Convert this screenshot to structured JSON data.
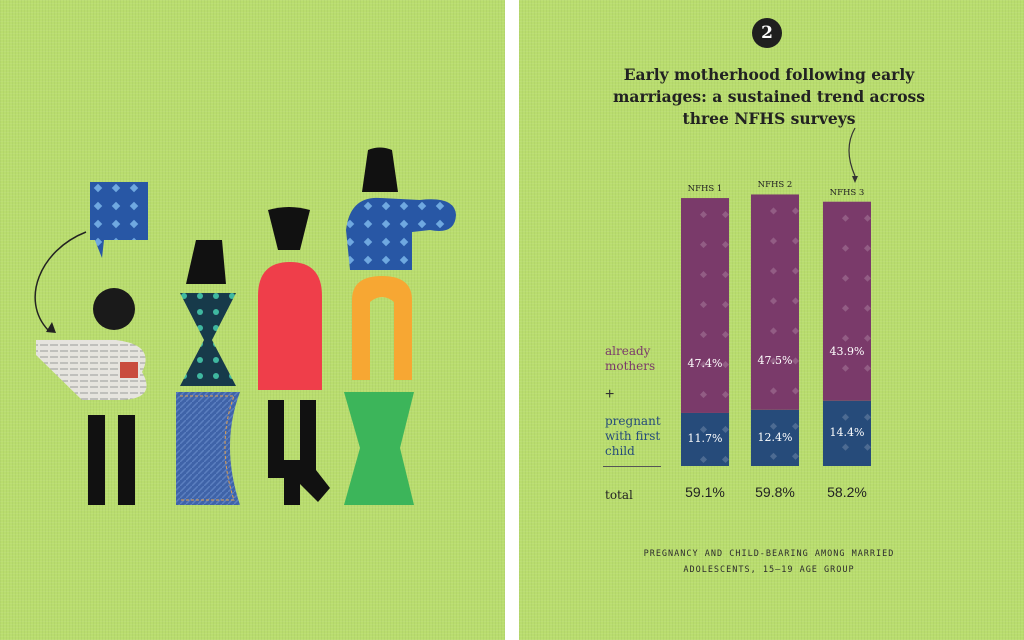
{
  "badge": "2",
  "title_lines": [
    "Early motherhood following early",
    "marriages: a sustained trend across",
    "three NFHS surveys"
  ],
  "legend": {
    "mothers_lines": [
      "already",
      "mothers"
    ],
    "plus": "+",
    "pregnant_lines": [
      "pregnant",
      "with first",
      "child"
    ],
    "total": "total"
  },
  "footnote_lines": [
    "PREGNANCY AND CHILD-BEARING AMONG MARRIED",
    "ADOLESCENTS, 15–19 AGE GROUP"
  ],
  "colors": {
    "background": "#b9dd6e",
    "already_mothers": "#7a3a6a",
    "pregnant": "#264b7a"
  },
  "chart_data": {
    "type": "bar",
    "stacked": true,
    "categories": [
      "NFHS 1",
      "NFHS 2",
      "NFHS 3"
    ],
    "series": [
      {
        "name": "pregnant with first child",
        "values": [
          11.7,
          12.4,
          14.4
        ],
        "labels": [
          "11.7%",
          "12.4%",
          "14.4%"
        ]
      },
      {
        "name": "already mothers",
        "values": [
          47.4,
          47.5,
          43.9
        ],
        "labels": [
          "47.4%",
          "47.5%",
          "43.9%"
        ]
      }
    ],
    "totals": [
      "59.1%",
      "59.8%",
      "58.2%"
    ],
    "ylim": [
      0,
      60
    ],
    "grid": false
  }
}
